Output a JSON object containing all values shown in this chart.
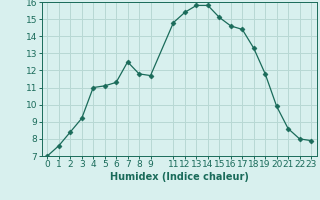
{
  "x": [
    0,
    1,
    2,
    3,
    4,
    5,
    6,
    7,
    8,
    9,
    11,
    12,
    13,
    14,
    15,
    16,
    17,
    18,
    19,
    20,
    21,
    22,
    23
  ],
  "y": [
    7.0,
    7.6,
    8.4,
    9.2,
    11.0,
    11.1,
    11.3,
    12.5,
    11.8,
    11.7,
    14.8,
    15.4,
    15.8,
    15.8,
    15.1,
    14.6,
    14.4,
    13.3,
    11.8,
    9.9,
    8.6,
    8.0,
    7.9
  ],
  "line_color": "#1a6b5a",
  "marker": "D",
  "marker_size": 2.5,
  "bg_color": "#d8f0ee",
  "grid_color": "#b8d8d4",
  "xlabel": "Humidex (Indice chaleur)",
  "ylim": [
    7,
    16
  ],
  "xlim": [
    -0.5,
    23.5
  ],
  "xticks": [
    0,
    1,
    2,
    3,
    4,
    5,
    6,
    7,
    8,
    9,
    11,
    12,
    13,
    14,
    15,
    16,
    17,
    18,
    19,
    20,
    21,
    22,
    23
  ],
  "yticks": [
    7,
    8,
    9,
    10,
    11,
    12,
    13,
    14,
    15,
    16
  ],
  "label_fontsize": 7,
  "tick_fontsize": 6.5
}
